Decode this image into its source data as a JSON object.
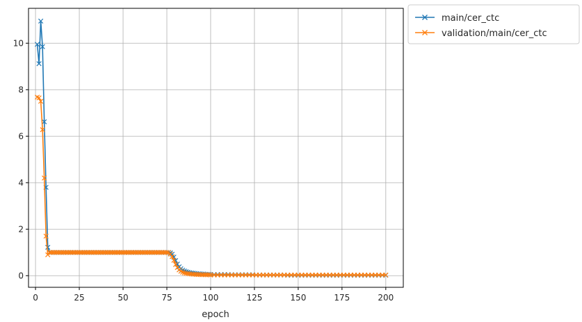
{
  "chart_data": {
    "type": "line",
    "title": "",
    "xlabel": "epoch",
    "ylabel": "",
    "xlim": [
      -4,
      210
    ],
    "ylim": [
      -0.5,
      11.5
    ],
    "xticks": [
      0,
      25,
      50,
      75,
      100,
      125,
      150,
      175,
      200
    ],
    "yticks": [
      0,
      2,
      4,
      6,
      8,
      10
    ],
    "grid": true,
    "legend_position": "outside-top-right",
    "marker": "x",
    "series": [
      {
        "name": "main/cer_ctc",
        "color": "#1f77b4",
        "points": [
          [
            1,
            9.95
          ],
          [
            2,
            9.12
          ],
          [
            3,
            10.95
          ],
          [
            4,
            9.85
          ],
          [
            5,
            6.62
          ],
          [
            6,
            3.8
          ],
          [
            7,
            1.22
          ],
          [
            8,
            1.0
          ],
          [
            9,
            1.0
          ],
          [
            10,
            1.0
          ],
          [
            11,
            1.0
          ],
          [
            12,
            1.0
          ],
          [
            13,
            1.0
          ],
          [
            14,
            1.0
          ],
          [
            15,
            1.0
          ],
          [
            16,
            1.0
          ],
          [
            17,
            1.0
          ],
          [
            18,
            1.0
          ],
          [
            19,
            1.0
          ],
          [
            20,
            1.0
          ],
          [
            21,
            1.0
          ],
          [
            22,
            1.0
          ],
          [
            23,
            1.0
          ],
          [
            24,
            1.0
          ],
          [
            25,
            1.0
          ],
          [
            26,
            1.0
          ],
          [
            27,
            1.0
          ],
          [
            28,
            1.0
          ],
          [
            29,
            1.0
          ],
          [
            30,
            1.0
          ],
          [
            31,
            1.0
          ],
          [
            32,
            1.0
          ],
          [
            33,
            1.0
          ],
          [
            34,
            1.0
          ],
          [
            35,
            1.0
          ],
          [
            36,
            1.0
          ],
          [
            37,
            1.0
          ],
          [
            38,
            1.0
          ],
          [
            39,
            1.0
          ],
          [
            40,
            1.0
          ],
          [
            41,
            1.0
          ],
          [
            42,
            1.0
          ],
          [
            43,
            1.0
          ],
          [
            44,
            1.0
          ],
          [
            45,
            1.0
          ],
          [
            46,
            1.0
          ],
          [
            47,
            1.0
          ],
          [
            48,
            1.0
          ],
          [
            49,
            1.0
          ],
          [
            50,
            1.0
          ],
          [
            51,
            1.0
          ],
          [
            52,
            1.0
          ],
          [
            53,
            1.0
          ],
          [
            54,
            1.0
          ],
          [
            55,
            1.0
          ],
          [
            56,
            1.0
          ],
          [
            57,
            1.0
          ],
          [
            58,
            1.0
          ],
          [
            59,
            1.0
          ],
          [
            60,
            1.0
          ],
          [
            61,
            1.0
          ],
          [
            62,
            1.0
          ],
          [
            63,
            1.0
          ],
          [
            64,
            1.0
          ],
          [
            65,
            1.0
          ],
          [
            66,
            1.0
          ],
          [
            67,
            1.0
          ],
          [
            68,
            1.0
          ],
          [
            69,
            1.0
          ],
          [
            70,
            1.0
          ],
          [
            71,
            1.0
          ],
          [
            72,
            1.0
          ],
          [
            73,
            1.0
          ],
          [
            74,
            1.0
          ],
          [
            75,
            1.0
          ],
          [
            76,
            1.0
          ],
          [
            77,
            0.98
          ],
          [
            78,
            0.92
          ],
          [
            79,
            0.8
          ],
          [
            80,
            0.65
          ],
          [
            81,
            0.5
          ],
          [
            82,
            0.38
          ],
          [
            83,
            0.3
          ],
          [
            84,
            0.24
          ],
          [
            85,
            0.2
          ],
          [
            86,
            0.17
          ],
          [
            87,
            0.15
          ],
          [
            88,
            0.13
          ],
          [
            89,
            0.12
          ],
          [
            90,
            0.11
          ],
          [
            91,
            0.1
          ],
          [
            92,
            0.09
          ],
          [
            93,
            0.08
          ],
          [
            94,
            0.08
          ],
          [
            95,
            0.07
          ],
          [
            96,
            0.07
          ],
          [
            97,
            0.06
          ],
          [
            98,
            0.06
          ],
          [
            99,
            0.06
          ],
          [
            100,
            0.05
          ],
          [
            102,
            0.05
          ],
          [
            104,
            0.05
          ],
          [
            106,
            0.05
          ],
          [
            108,
            0.05
          ],
          [
            110,
            0.05
          ],
          [
            112,
            0.04
          ],
          [
            114,
            0.04
          ],
          [
            116,
            0.04
          ],
          [
            118,
            0.04
          ],
          [
            120,
            0.04
          ],
          [
            122,
            0.04
          ],
          [
            124,
            0.04
          ],
          [
            126,
            0.03
          ],
          [
            128,
            0.03
          ],
          [
            130,
            0.03
          ],
          [
            132,
            0.03
          ],
          [
            134,
            0.03
          ],
          [
            136,
            0.03
          ],
          [
            138,
            0.03
          ],
          [
            140,
            0.03
          ],
          [
            142,
            0.03
          ],
          [
            144,
            0.02
          ],
          [
            146,
            0.02
          ],
          [
            148,
            0.02
          ],
          [
            150,
            0.02
          ],
          [
            152,
            0.02
          ],
          [
            154,
            0.02
          ],
          [
            156,
            0.02
          ],
          [
            158,
            0.02
          ],
          [
            160,
            0.02
          ],
          [
            162,
            0.02
          ],
          [
            164,
            0.02
          ],
          [
            166,
            0.02
          ],
          [
            168,
            0.02
          ],
          [
            170,
            0.02
          ],
          [
            172,
            0.02
          ],
          [
            174,
            0.02
          ],
          [
            176,
            0.02
          ],
          [
            178,
            0.02
          ],
          [
            180,
            0.02
          ],
          [
            182,
            0.02
          ],
          [
            184,
            0.02
          ],
          [
            186,
            0.02
          ],
          [
            188,
            0.02
          ],
          [
            190,
            0.02
          ],
          [
            192,
            0.02
          ],
          [
            194,
            0.02
          ],
          [
            196,
            0.02
          ],
          [
            198,
            0.02
          ],
          [
            200,
            0.02
          ]
        ]
      },
      {
        "name": "validation/main/cer_ctc",
        "color": "#ff7f0e",
        "points": [
          [
            1,
            7.68
          ],
          [
            2,
            7.65
          ],
          [
            3,
            7.5
          ],
          [
            4,
            6.28
          ],
          [
            5,
            4.2
          ],
          [
            6,
            1.7
          ],
          [
            7,
            0.9
          ],
          [
            8,
            1.0
          ],
          [
            9,
            1.0
          ],
          [
            10,
            1.0
          ],
          [
            11,
            1.0
          ],
          [
            12,
            1.0
          ],
          [
            13,
            1.0
          ],
          [
            14,
            1.0
          ],
          [
            15,
            1.0
          ],
          [
            16,
            1.0
          ],
          [
            17,
            1.0
          ],
          [
            18,
            1.0
          ],
          [
            19,
            1.0
          ],
          [
            20,
            1.0
          ],
          [
            21,
            1.0
          ],
          [
            22,
            1.0
          ],
          [
            23,
            1.0
          ],
          [
            24,
            1.0
          ],
          [
            25,
            1.0
          ],
          [
            26,
            1.0
          ],
          [
            27,
            1.0
          ],
          [
            28,
            1.0
          ],
          [
            29,
            1.0
          ],
          [
            30,
            1.0
          ],
          [
            31,
            1.0
          ],
          [
            32,
            1.0
          ],
          [
            33,
            1.0
          ],
          [
            34,
            1.0
          ],
          [
            35,
            1.0
          ],
          [
            36,
            1.0
          ],
          [
            37,
            1.0
          ],
          [
            38,
            1.0
          ],
          [
            39,
            1.0
          ],
          [
            40,
            1.0
          ],
          [
            41,
            1.0
          ],
          [
            42,
            1.0
          ],
          [
            43,
            1.0
          ],
          [
            44,
            1.0
          ],
          [
            45,
            1.0
          ],
          [
            46,
            1.0
          ],
          [
            47,
            1.0
          ],
          [
            48,
            1.0
          ],
          [
            49,
            1.0
          ],
          [
            50,
            1.0
          ],
          [
            51,
            1.0
          ],
          [
            52,
            1.0
          ],
          [
            53,
            1.0
          ],
          [
            54,
            1.0
          ],
          [
            55,
            1.0
          ],
          [
            56,
            1.0
          ],
          [
            57,
            1.0
          ],
          [
            58,
            1.0
          ],
          [
            59,
            1.0
          ],
          [
            60,
            1.0
          ],
          [
            61,
            1.0
          ],
          [
            62,
            1.0
          ],
          [
            63,
            1.0
          ],
          [
            64,
            1.0
          ],
          [
            65,
            1.0
          ],
          [
            66,
            1.0
          ],
          [
            67,
            1.0
          ],
          [
            68,
            1.0
          ],
          [
            69,
            1.0
          ],
          [
            70,
            1.0
          ],
          [
            71,
            1.0
          ],
          [
            72,
            1.0
          ],
          [
            73,
            1.0
          ],
          [
            74,
            1.0
          ],
          [
            75,
            1.0
          ],
          [
            76,
            0.99
          ],
          [
            77,
            0.93
          ],
          [
            78,
            0.82
          ],
          [
            79,
            0.66
          ],
          [
            80,
            0.48
          ],
          [
            81,
            0.35
          ],
          [
            82,
            0.25
          ],
          [
            83,
            0.19
          ],
          [
            84,
            0.15
          ],
          [
            85,
            0.12
          ],
          [
            86,
            0.1
          ],
          [
            87,
            0.09
          ],
          [
            88,
            0.08
          ],
          [
            89,
            0.07
          ],
          [
            90,
            0.06
          ],
          [
            91,
            0.06
          ],
          [
            92,
            0.05
          ],
          [
            93,
            0.05
          ],
          [
            94,
            0.05
          ],
          [
            95,
            0.04
          ],
          [
            96,
            0.04
          ],
          [
            97,
            0.04
          ],
          [
            98,
            0.04
          ],
          [
            99,
            0.04
          ],
          [
            100,
            0.03
          ],
          [
            102,
            0.03
          ],
          [
            104,
            0.03
          ],
          [
            106,
            0.03
          ],
          [
            108,
            0.03
          ],
          [
            110,
            0.03
          ],
          [
            112,
            0.03
          ],
          [
            114,
            0.03
          ],
          [
            116,
            0.03
          ],
          [
            118,
            0.03
          ],
          [
            120,
            0.03
          ],
          [
            122,
            0.03
          ],
          [
            124,
            0.03
          ],
          [
            126,
            0.03
          ],
          [
            128,
            0.03
          ],
          [
            130,
            0.03
          ],
          [
            132,
            0.03
          ],
          [
            134,
            0.03
          ],
          [
            136,
            0.03
          ],
          [
            138,
            0.03
          ],
          [
            140,
            0.03
          ],
          [
            142,
            0.03
          ],
          [
            144,
            0.03
          ],
          [
            146,
            0.03
          ],
          [
            148,
            0.03
          ],
          [
            150,
            0.03
          ],
          [
            152,
            0.03
          ],
          [
            154,
            0.03
          ],
          [
            156,
            0.03
          ],
          [
            158,
            0.03
          ],
          [
            160,
            0.03
          ],
          [
            162,
            0.03
          ],
          [
            164,
            0.03
          ],
          [
            166,
            0.03
          ],
          [
            168,
            0.03
          ],
          [
            170,
            0.03
          ],
          [
            172,
            0.03
          ],
          [
            174,
            0.03
          ],
          [
            176,
            0.03
          ],
          [
            178,
            0.03
          ],
          [
            180,
            0.03
          ],
          [
            182,
            0.03
          ],
          [
            184,
            0.03
          ],
          [
            186,
            0.03
          ],
          [
            188,
            0.03
          ],
          [
            190,
            0.03
          ],
          [
            192,
            0.03
          ],
          [
            194,
            0.03
          ],
          [
            196,
            0.03
          ],
          [
            198,
            0.03
          ],
          [
            200,
            0.03
          ]
        ]
      }
    ]
  }
}
